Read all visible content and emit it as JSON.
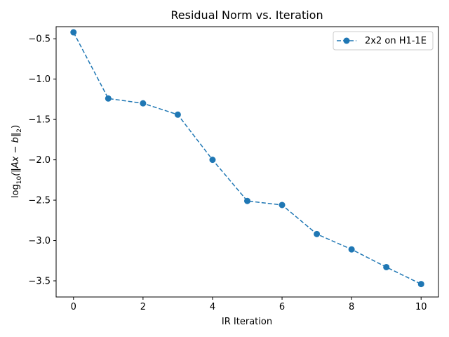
{
  "chart_data": {
    "type": "line",
    "title": "Residual Norm vs. Iteration",
    "xlabel": "IR Iteration",
    "ylabel": {
      "prefix": "log",
      "subscript": "10",
      "body": "(‖Ax − b‖",
      "norm_subscript": "2",
      "suffix": ")"
    },
    "xlim": [
      -0.5,
      10.5
    ],
    "ylim": [
      -3.7,
      -0.35
    ],
    "xticks": [
      0,
      2,
      4,
      6,
      8,
      10
    ],
    "xtick_labels": [
      "0",
      "2",
      "4",
      "6",
      "8",
      "10"
    ],
    "yticks": [
      -0.5,
      -1.0,
      -1.5,
      -2.0,
      -2.5,
      -3.0,
      -3.5
    ],
    "ytick_labels": [
      "−0.5",
      "−1.0",
      "−1.5",
      "−2.0",
      "−2.5",
      "−3.0",
      "−3.5"
    ],
    "grid": false,
    "legend_position": "top-right",
    "series": [
      {
        "name": "2x2 on H1-1E",
        "color": "#1f77b4",
        "linestyle": "dashed",
        "marker": "circle",
        "x": [
          0,
          1,
          2,
          3,
          4,
          5,
          6,
          7,
          8,
          9,
          10
        ],
        "y": [
          -0.42,
          -1.24,
          -1.3,
          -1.44,
          -2.0,
          -2.51,
          -2.56,
          -2.92,
          -3.11,
          -3.33,
          -3.54
        ]
      }
    ]
  }
}
